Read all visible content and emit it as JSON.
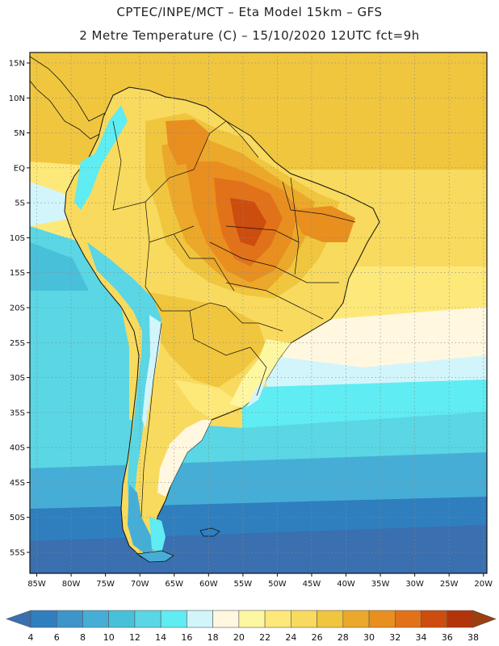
{
  "title_line1": "CPTEC/INPE/MCT –  Eta Model 15km – GFS",
  "title_line2": "2 Metre Temperature (C) – 15/10/2020 12UTC fct=9h",
  "map": {
    "lat_labels": [
      "15N",
      "10N",
      "5N",
      "EQ",
      "5S",
      "10S",
      "15S",
      "20S",
      "25S",
      "30S",
      "35S",
      "40S",
      "45S",
      "50S",
      "55S"
    ],
    "lat_values": [
      15,
      10,
      5,
      0,
      -5,
      -10,
      -15,
      -20,
      -25,
      -30,
      -35,
      -40,
      -45,
      -50,
      -55
    ],
    "lon_labels": [
      "85W",
      "80W",
      "75W",
      "70W",
      "65W",
      "60W",
      "55W",
      "50W",
      "45W",
      "40W",
      "35W",
      "30W",
      "25W",
      "20W"
    ],
    "lon_values": [
      -85,
      -80,
      -75,
      -70,
      -65,
      -60,
      -55,
      -50,
      -45,
      -40,
      -35,
      -30,
      -25,
      -20
    ],
    "lat_range": [
      -58,
      16.5
    ],
    "lon_range": [
      -86,
      -19.5
    ],
    "gridlines": "dotted",
    "field": "2 metre temperature",
    "units": "C"
  },
  "colorbar": {
    "labels": [
      "4",
      "6",
      "8",
      "10",
      "12",
      "14",
      "16",
      "18",
      "20",
      "22",
      "24",
      "26",
      "28",
      "30",
      "32",
      "34",
      "36",
      "38"
    ],
    "colors": [
      "#3a6fb0",
      "#2f7fbf",
      "#3d95c9",
      "#46aed6",
      "#49c0da",
      "#5ad6e4",
      "#5fecf2",
      "#d2f5fb",
      "#fff7e0",
      "#fef7a2",
      "#fde87a",
      "#f8da5e",
      "#f0c63e",
      "#eba82a",
      "#e88f20",
      "#e2721a",
      "#cc4d0e",
      "#b3340a",
      "#993f10"
    ]
  }
}
